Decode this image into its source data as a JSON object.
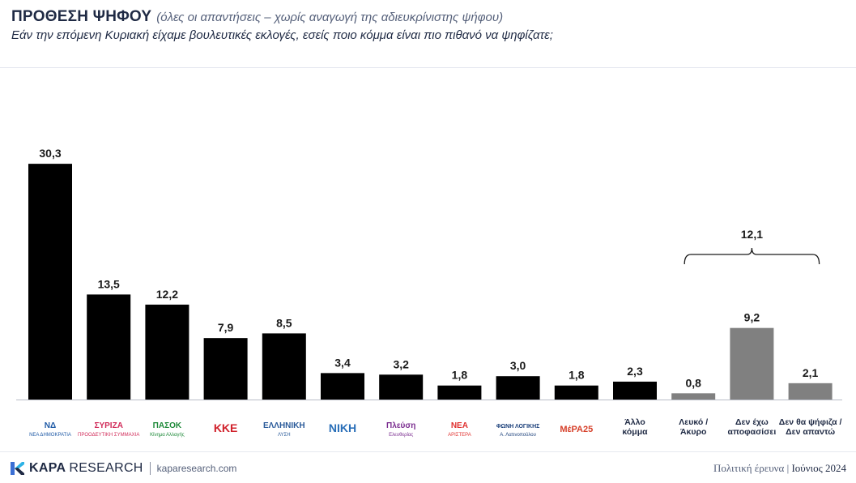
{
  "header": {
    "title": "ΠΡΟΘΕΣΗ ΨΗΦΟΥ",
    "subtitle": "(όλες οι απαντήσεις – χωρίς αναγωγή της αδιευκρίνιστης ψήφου)",
    "question": "Εάν την επόμενη Κυριακή είχαμε βουλευτικές εκλογές, εσείς ποιο κόμμα είναι πιο πιθανό να ψηφίζατε;"
  },
  "colors": {
    "party_bar": "#000000",
    "other_bar": "#808080",
    "title": "#1f2a44"
  },
  "chart_data": {
    "type": "bar",
    "ylim": [
      0,
      35
    ],
    "grid": false,
    "legend": "none",
    "bars": [
      {
        "value": 30.3,
        "label": "30,3",
        "logo_text": [
          "ΝΔ",
          "ΝΕΑ ΔΗΜΟΚΡΑΤΙΑ"
        ],
        "logo_color": "#1f5aa6",
        "kind": "party"
      },
      {
        "value": 13.5,
        "label": "13,5",
        "logo_text": [
          "ΣΥΡΙΖΑ",
          "ΠΡΟΟΔΕΥΤΙΚΗ ΣΥΜΜΑΧΙΑ"
        ],
        "logo_color": "#d12c5a",
        "kind": "party"
      },
      {
        "value": 12.2,
        "label": "12,2",
        "logo_text": [
          "ΠΑΣΟΚ",
          "Κίνημα Αλλαγής"
        ],
        "logo_color": "#1f8a3a",
        "kind": "party"
      },
      {
        "value": 7.9,
        "label": "7,9",
        "logo_text": [
          "ΚΚΕ"
        ],
        "logo_color": "#d0202a",
        "kind": "party"
      },
      {
        "value": 8.5,
        "label": "8,5",
        "logo_text": [
          "ΕΛΛΗΝΙΚΗ",
          "ΛΥΣΗ"
        ],
        "logo_color": "#2b5b9a",
        "kind": "party"
      },
      {
        "value": 3.4,
        "label": "3,4",
        "logo_text": [
          "ΝΙΚΗ"
        ],
        "logo_color": "#2a6fb8",
        "kind": "party"
      },
      {
        "value": 3.2,
        "label": "3,2",
        "logo_text": [
          "Πλεύση",
          "Ελευθερίας"
        ],
        "logo_color": "#7a2c8f",
        "kind": "party"
      },
      {
        "value": 1.8,
        "label": "1,8",
        "logo_text": [
          "ΝΕΑ",
          "ΑΡΙΣΤΕΡΑ"
        ],
        "logo_color": "#e0312f",
        "kind": "party"
      },
      {
        "value": 3.0,
        "label": "3,0",
        "logo_text": [
          "ΦΩΝΗ ΛΟΓΙΚΗΣ",
          "Α. Λατινοπούλου"
        ],
        "logo_color": "#1a3f7a",
        "kind": "party"
      },
      {
        "value": 1.8,
        "label": "1,8",
        "logo_text": [
          "ΜέΡΑ25"
        ],
        "logo_color": "#d6402a",
        "kind": "party"
      },
      {
        "value": 2.3,
        "label": "2,3",
        "category": [
          "Άλλο",
          "κόμμα"
        ],
        "kind": "party"
      },
      {
        "value": 0.8,
        "label": "0,8",
        "category": [
          "Λευκό /",
          "Άκυρο"
        ],
        "kind": "other"
      },
      {
        "value": 9.2,
        "label": "9,2",
        "category": [
          "Δεν έχω",
          "αποφασίσει"
        ],
        "kind": "other"
      },
      {
        "value": 2.1,
        "label": "2,1",
        "category": [
          "Δεν θα ψήφιζα /",
          "Δεν απαντώ"
        ],
        "kind": "other"
      }
    ],
    "bracket": {
      "label": "12,1",
      "from_index": 11,
      "to_index": 13
    }
  },
  "footer": {
    "brand_name": "KAPA",
    "brand_research": "RESEARCH",
    "url": "kaparesearch.com",
    "survey": "Πολιτική έρευνα",
    "date": "Ιούνιος 2024"
  }
}
